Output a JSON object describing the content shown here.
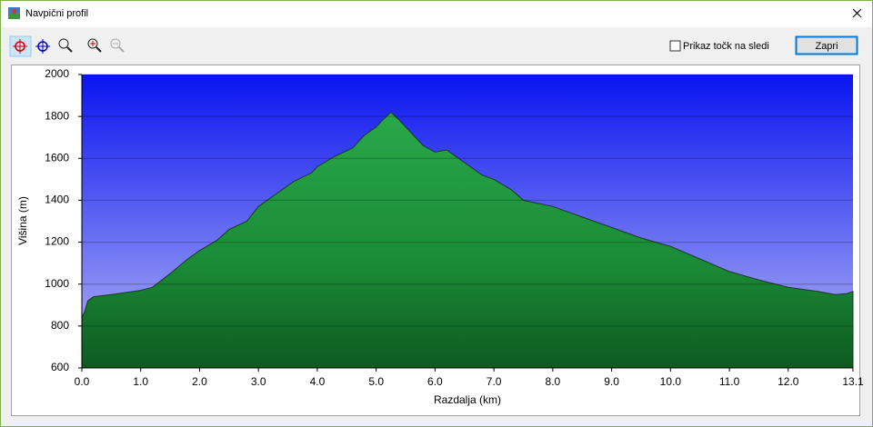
{
  "window": {
    "title": "Navpični profil"
  },
  "toolbar": {
    "checkbox_label": "Prikaz točk na sledi",
    "button": "Zapri"
  },
  "chart_data": {
    "type": "area",
    "x_label": "Razdalja    (km)",
    "y_label": "Višina (m)",
    "x": [
      0.0,
      0.05,
      0.1,
      0.2,
      0.5,
      1.0,
      1.2,
      1.5,
      1.8,
      2.0,
      2.3,
      2.5,
      2.8,
      3.0,
      3.3,
      3.6,
      3.9,
      4.0,
      4.3,
      4.6,
      4.8,
      5.0,
      5.1,
      5.25,
      5.4,
      5.6,
      5.8,
      6.0,
      6.2,
      6.4,
      6.6,
      6.8,
      7.0,
      7.3,
      7.5,
      8.0,
      8.5,
      9.0,
      9.5,
      10.0,
      10.5,
      11.0,
      11.5,
      12.0,
      12.5,
      12.8,
      13.0,
      13.1
    ],
    "series": [
      {
        "name": "Višina",
        "color": "#1e9a3c",
        "values": [
          840,
          870,
          920,
          940,
          950,
          970,
          985,
          1050,
          1120,
          1160,
          1210,
          1260,
          1300,
          1370,
          1430,
          1490,
          1530,
          1560,
          1610,
          1650,
          1710,
          1750,
          1780,
          1820,
          1780,
          1720,
          1660,
          1630,
          1640,
          1600,
          1560,
          1520,
          1500,
          1450,
          1400,
          1370,
          1320,
          1270,
          1220,
          1180,
          1120,
          1060,
          1020,
          985,
          965,
          950,
          955,
          965
        ]
      }
    ],
    "xlim": [
      0,
      13.1
    ],
    "ylim": [
      600,
      2000
    ],
    "xticks": [
      {
        "value": 0,
        "label": "0.0"
      },
      {
        "value": 1,
        "label": "1.0"
      },
      {
        "value": 2,
        "label": "2.0"
      },
      {
        "value": 3,
        "label": "3.0"
      },
      {
        "value": 4,
        "label": "4.0"
      },
      {
        "value": 5,
        "label": "5.0"
      },
      {
        "value": 6,
        "label": "6.0"
      },
      {
        "value": 7,
        "label": "7.0"
      },
      {
        "value": 8,
        "label": "8.0"
      },
      {
        "value": 9,
        "label": "9.0"
      },
      {
        "value": 10,
        "label": "10.0"
      },
      {
        "value": 11,
        "label": "11.0"
      },
      {
        "value": 12,
        "label": "12.0"
      },
      13.1
    ],
    "yticks": [
      600,
      800,
      1000,
      1200,
      1400,
      1600,
      1800,
      2000
    ],
    "grid": true
  }
}
